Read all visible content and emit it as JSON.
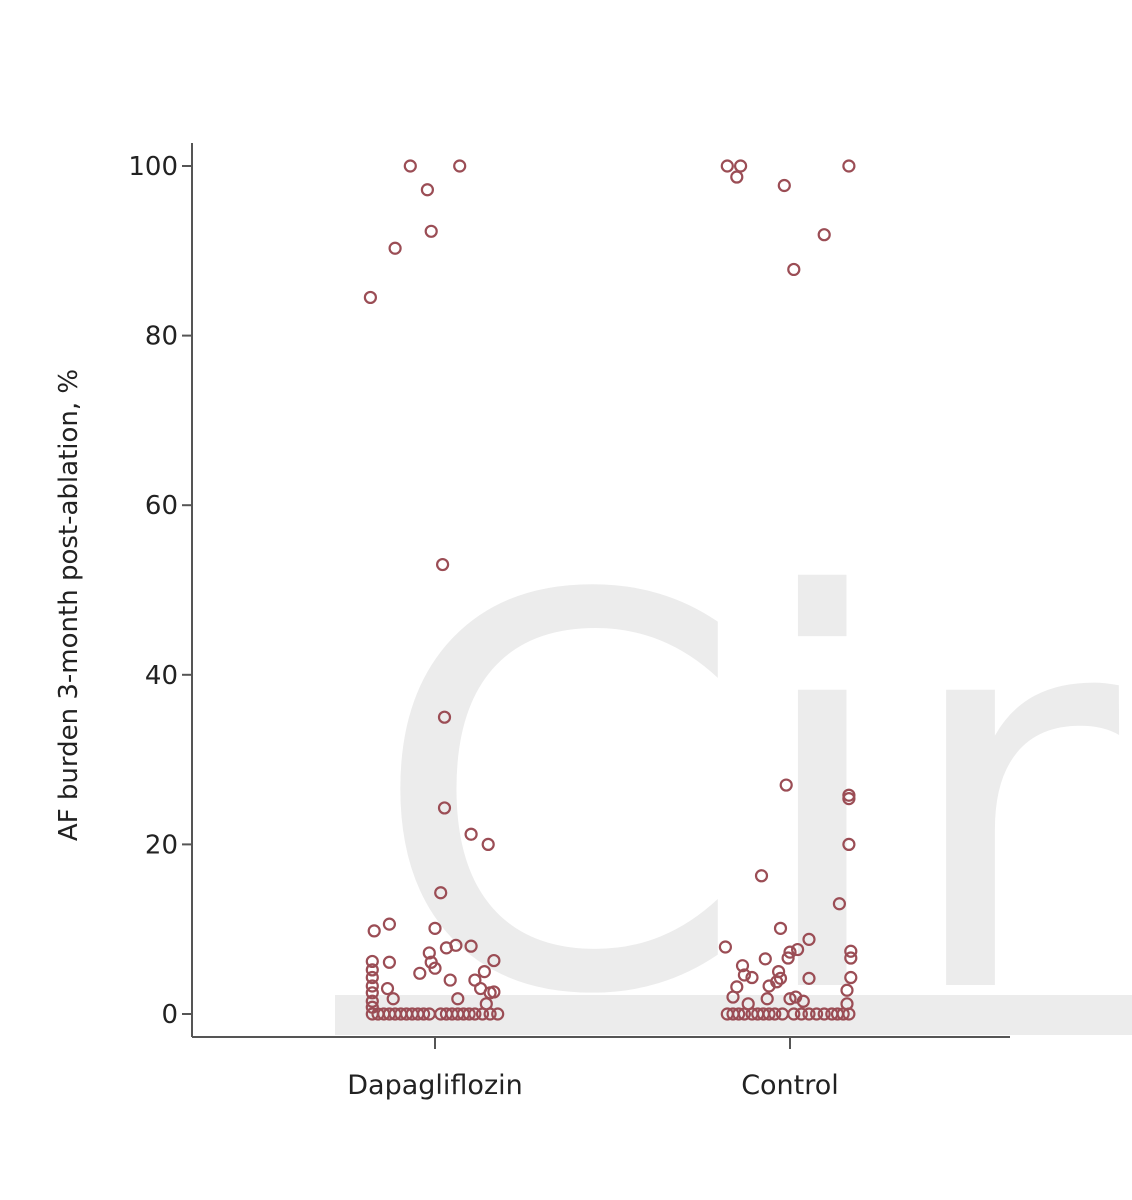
{
  "watermark": "Circ",
  "chart_data": {
    "type": "scatter",
    "title": "",
    "xlabel": "",
    "ylabel": "AF burden 3-month post-ablation, %",
    "categories": [
      "Dapagliflozin",
      "Control"
    ],
    "ylim": [
      0,
      100
    ],
    "yticks": [
      0,
      20,
      40,
      60,
      80,
      100
    ],
    "ytick_labels": [
      "0",
      "20",
      "40",
      "60",
      "80",
      "100"
    ],
    "marker_color": "#9b4d55",
    "series": [
      {
        "name": "Dapagliflozin",
        "points": [
          {
            "j": -0.34,
            "y": 84.5
          },
          {
            "j": -0.21,
            "y": 90.3
          },
          {
            "j": -0.13,
            "y": 100
          },
          {
            "j": -0.04,
            "y": 97.2
          },
          {
            "j": -0.02,
            "y": 92.3
          },
          {
            "j": 0.13,
            "y": 100
          },
          {
            "j": 0.04,
            "y": 53
          },
          {
            "j": 0.05,
            "y": 35
          },
          {
            "j": 0.05,
            "y": 24.3
          },
          {
            "j": 0.19,
            "y": 21.2
          },
          {
            "j": 0.28,
            "y": 20
          },
          {
            "j": 0.03,
            "y": 14.3
          },
          {
            "j": -0.24,
            "y": 10.6
          },
          {
            "j": -0.32,
            "y": 9.8
          },
          {
            "j": 0.0,
            "y": 10.1
          },
          {
            "j": 0.06,
            "y": 7.8
          },
          {
            "j": 0.11,
            "y": 8.1
          },
          {
            "j": 0.19,
            "y": 8.0
          },
          {
            "j": -0.03,
            "y": 7.2
          },
          {
            "j": -0.02,
            "y": 6.1
          },
          {
            "j": 0.31,
            "y": 6.3
          },
          {
            "j": -0.24,
            "y": 6.1
          },
          {
            "j": 0.0,
            "y": 5.4
          },
          {
            "j": -0.08,
            "y": 4.8
          },
          {
            "j": 0.26,
            "y": 5.0
          },
          {
            "j": 0.08,
            "y": 4.0
          },
          {
            "j": 0.21,
            "y": 4.0
          },
          {
            "j": -0.33,
            "y": 6.2
          },
          {
            "j": -0.33,
            "y": 5.2
          },
          {
            "j": -0.33,
            "y": 4.3
          },
          {
            "j": -0.33,
            "y": 3.3
          },
          {
            "j": -0.33,
            "y": 2.5
          },
          {
            "j": -0.33,
            "y": 1.5
          },
          {
            "j": -0.33,
            "y": 0.8
          },
          {
            "j": -0.25,
            "y": 3.0
          },
          {
            "j": -0.22,
            "y": 1.8
          },
          {
            "j": 0.24,
            "y": 3.0
          },
          {
            "j": 0.29,
            "y": 2.5
          },
          {
            "j": 0.31,
            "y": 2.6
          },
          {
            "j": 0.12,
            "y": 1.8
          },
          {
            "j": 0.27,
            "y": 1.2
          },
          {
            "j": -0.33,
            "y": 0
          },
          {
            "j": -0.3,
            "y": 0
          },
          {
            "j": -0.27,
            "y": 0
          },
          {
            "j": -0.24,
            "y": 0
          },
          {
            "j": -0.21,
            "y": 0
          },
          {
            "j": -0.18,
            "y": 0
          },
          {
            "j": -0.15,
            "y": 0
          },
          {
            "j": -0.12,
            "y": 0
          },
          {
            "j": -0.09,
            "y": 0
          },
          {
            "j": -0.06,
            "y": 0
          },
          {
            "j": -0.03,
            "y": 0
          },
          {
            "j": 0.03,
            "y": 0
          },
          {
            "j": 0.06,
            "y": 0
          },
          {
            "j": 0.09,
            "y": 0
          },
          {
            "j": 0.12,
            "y": 0
          },
          {
            "j": 0.15,
            "y": 0
          },
          {
            "j": 0.18,
            "y": 0
          },
          {
            "j": 0.21,
            "y": 0
          },
          {
            "j": 0.25,
            "y": 0
          },
          {
            "j": 0.29,
            "y": 0
          },
          {
            "j": 0.33,
            "y": 0
          }
        ]
      },
      {
        "name": "Control",
        "points": [
          {
            "j": -0.33,
            "y": 100
          },
          {
            "j": -0.28,
            "y": 98.7
          },
          {
            "j": -0.26,
            "y": 100
          },
          {
            "j": -0.03,
            "y": 97.7
          },
          {
            "j": 0.02,
            "y": 87.8
          },
          {
            "j": 0.18,
            "y": 91.9
          },
          {
            "j": 0.31,
            "y": 100
          },
          {
            "j": -0.02,
            "y": 27
          },
          {
            "j": 0.31,
            "y": 25.8
          },
          {
            "j": 0.31,
            "y": 25.4
          },
          {
            "j": 0.31,
            "y": 20
          },
          {
            "j": -0.15,
            "y": 16.3
          },
          {
            "j": 0.26,
            "y": 13
          },
          {
            "j": -0.05,
            "y": 10.1
          },
          {
            "j": 0.1,
            "y": 8.8
          },
          {
            "j": -0.34,
            "y": 7.9
          },
          {
            "j": 0.04,
            "y": 7.6
          },
          {
            "j": 0.0,
            "y": 7.3
          },
          {
            "j": -0.01,
            "y": 6.6
          },
          {
            "j": -0.13,
            "y": 6.5
          },
          {
            "j": 0.32,
            "y": 7.4
          },
          {
            "j": 0.32,
            "y": 6.6
          },
          {
            "j": -0.25,
            "y": 5.7
          },
          {
            "j": -0.06,
            "y": 5.0
          },
          {
            "j": -0.05,
            "y": 4.2
          },
          {
            "j": -0.24,
            "y": 4.6
          },
          {
            "j": -0.2,
            "y": 4.3
          },
          {
            "j": 0.1,
            "y": 4.2
          },
          {
            "j": -0.28,
            "y": 3.2
          },
          {
            "j": -0.11,
            "y": 3.3
          },
          {
            "j": -0.07,
            "y": 3.8
          },
          {
            "j": 0.32,
            "y": 4.3
          },
          {
            "j": 0.3,
            "y": 2.8
          },
          {
            "j": -0.3,
            "y": 2.0
          },
          {
            "j": 0.0,
            "y": 1.8
          },
          {
            "j": 0.03,
            "y": 2.0
          },
          {
            "j": 0.07,
            "y": 1.5
          },
          {
            "j": 0.3,
            "y": 1.2
          },
          {
            "j": -0.22,
            "y": 1.2
          },
          {
            "j": -0.12,
            "y": 1.8
          },
          {
            "j": -0.33,
            "y": 0
          },
          {
            "j": -0.3,
            "y": 0
          },
          {
            "j": -0.27,
            "y": 0
          },
          {
            "j": -0.24,
            "y": 0
          },
          {
            "j": -0.2,
            "y": 0
          },
          {
            "j": -0.17,
            "y": 0
          },
          {
            "j": -0.14,
            "y": 0
          },
          {
            "j": -0.11,
            "y": 0
          },
          {
            "j": -0.08,
            "y": 0
          },
          {
            "j": -0.04,
            "y": 0
          },
          {
            "j": 0.02,
            "y": 0
          },
          {
            "j": 0.06,
            "y": 0
          },
          {
            "j": 0.1,
            "y": 0
          },
          {
            "j": 0.14,
            "y": 0
          },
          {
            "j": 0.18,
            "y": 0
          },
          {
            "j": 0.22,
            "y": 0
          },
          {
            "j": 0.25,
            "y": 0
          },
          {
            "j": 0.28,
            "y": 0
          },
          {
            "j": 0.31,
            "y": 0
          }
        ]
      }
    ]
  }
}
